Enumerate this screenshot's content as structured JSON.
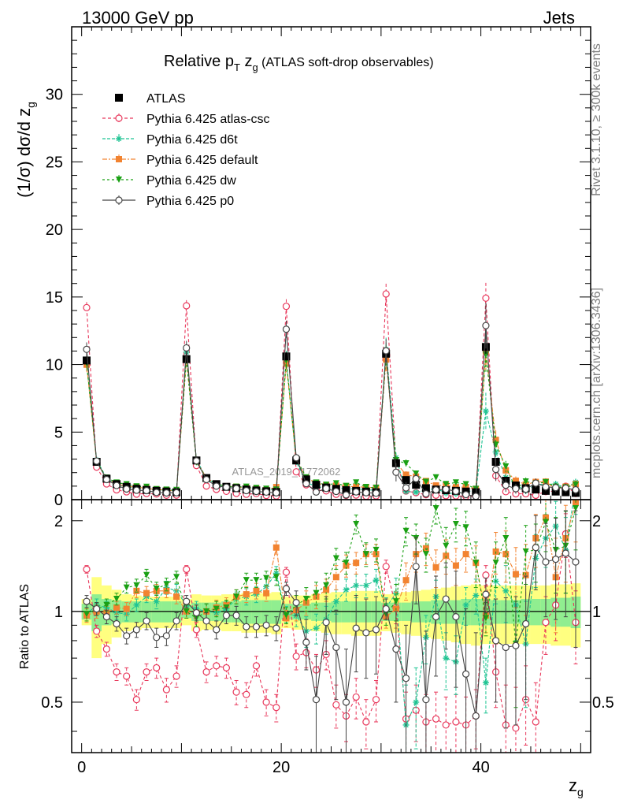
{
  "header": {
    "left": "13000 GeV pp",
    "right": "Jets"
  },
  "title": {
    "main": "Relative p",
    "sub_T": "T",
    "main2": " z",
    "sub_g": "g",
    "paren": " (ATLAS soft-drop observables)"
  },
  "side_labels": {
    "rivet": "Rivet 3.1.10, ≥ 300k events",
    "mcplots": "mcplots.cern.ch [arXiv:1306.3436]",
    "watermark": "ATLAS_2019_I1772062"
  },
  "axes": {
    "ylabel_top": "(1/σ) dσ/d z",
    "ylabel_top_sub": "g",
    "ylabel_bottom": "Ratio to ATLAS",
    "xlabel": "z",
    "xlabel_sub": "g",
    "top_yticks": [
      "0",
      "5",
      "10",
      "15",
      "20",
      "25",
      "30"
    ],
    "bottom_yticks": [
      "0.5",
      "1",
      "2"
    ],
    "xticks": [
      "0",
      "20",
      "40"
    ]
  },
  "colors": {
    "atlas": "#000000",
    "atlas_csc": "#e8365a",
    "d6t": "#1fc493",
    "default": "#f28330",
    "dw": "#1aa014",
    "p0": "#444444",
    "band_inner": "#90ee90",
    "band_outer": "#ffff80"
  },
  "chart_data": {
    "type": "line",
    "xlim": [
      -1,
      51
    ],
    "top_ylim": [
      0,
      35
    ],
    "ratio_ylim": [
      0.34,
      2.35
    ],
    "ratio_scale": "log",
    "bin_width": 1,
    "legend_position": "top-left",
    "x": [
      0.5,
      1.5,
      2.5,
      3.5,
      4.5,
      5.5,
      6.5,
      7.5,
      8.5,
      9.5,
      10.5,
      11.5,
      12.5,
      13.5,
      14.5,
      15.5,
      16.5,
      17.5,
      18.5,
      19.5,
      20.5,
      21.5,
      22.5,
      23.5,
      24.5,
      25.5,
      26.5,
      27.5,
      28.5,
      29.5,
      30.5,
      31.5,
      32.5,
      33.5,
      34.5,
      35.5,
      36.5,
      37.5,
      38.5,
      39.5,
      40.5,
      41.5,
      42.5,
      43.5,
      44.5,
      45.5,
      46.5,
      47.5,
      48.5,
      49.5
    ],
    "series": [
      {
        "name": "ATLAS",
        "key": "atlas",
        "values": [
          10.3,
          2.8,
          1.55,
          1.15,
          0.95,
          0.8,
          0.72,
          0.65,
          0.6,
          0.55,
          10.4,
          2.9,
          1.6,
          1.15,
          0.95,
          0.85,
          0.75,
          0.68,
          0.62,
          0.57,
          10.6,
          2.9,
          1.5,
          1.1,
          0.9,
          0.8,
          0.7,
          0.65,
          0.6,
          0.55,
          10.8,
          2.7,
          1.45,
          1.1,
          0.85,
          0.75,
          0.7,
          0.65,
          0.6,
          0.55,
          11.3,
          2.8,
          1.4,
          1.05,
          0.85,
          0.75,
          0.65,
          0.6,
          0.55,
          0.5
        ],
        "errors": [
          0.3,
          0.15,
          0.1,
          0.08,
          0.07,
          0.06,
          0.06,
          0.05,
          0.05,
          0.05,
          0.3,
          0.15,
          0.1,
          0.08,
          0.07,
          0.06,
          0.06,
          0.05,
          0.05,
          0.05,
          0.3,
          0.15,
          0.1,
          0.08,
          0.07,
          0.06,
          0.06,
          0.05,
          0.05,
          0.05,
          0.4,
          0.2,
          0.12,
          0.1,
          0.08,
          0.07,
          0.07,
          0.06,
          0.06,
          0.06,
          0.5,
          0.25,
          0.15,
          0.12,
          0.1,
          0.09,
          0.08,
          0.08,
          0.07,
          0.07
        ],
        "band_inner": [
          0.06,
          0.14,
          0.1,
          0.09,
          0.08,
          0.08,
          0.08,
          0.08,
          0.08,
          0.08,
          0.05,
          0.07,
          0.07,
          0.07,
          0.08,
          0.08,
          0.09,
          0.09,
          0.09,
          0.09,
          0.06,
          0.06,
          0.06,
          0.07,
          0.07,
          0.08,
          0.08,
          0.08,
          0.08,
          0.08,
          0.07,
          0.07,
          0.07,
          0.08,
          0.08,
          0.09,
          0.09,
          0.09,
          0.1,
          0.1,
          0.1,
          0.09,
          0.09,
          0.09,
          0.1,
          0.1,
          0.1,
          0.11,
          0.11,
          0.12
        ],
        "band_outer": [
          0.1,
          0.3,
          0.22,
          0.18,
          0.14,
          0.13,
          0.12,
          0.12,
          0.12,
          0.12,
          0.1,
          0.14,
          0.13,
          0.13,
          0.14,
          0.14,
          0.15,
          0.15,
          0.15,
          0.16,
          0.12,
          0.13,
          0.13,
          0.14,
          0.15,
          0.16,
          0.16,
          0.17,
          0.17,
          0.17,
          0.14,
          0.15,
          0.16,
          0.17,
          0.18,
          0.19,
          0.2,
          0.21,
          0.22,
          0.23,
          0.22,
          0.22,
          0.22,
          0.22,
          0.22,
          0.22,
          0.22,
          0.23,
          0.23,
          0.24
        ]
      },
      {
        "name": "Pythia 6.425 atlas-csc",
        "key": "atlas_csc",
        "marker": "open-circle",
        "dash": "4,3",
        "ratio": [
          1.38,
          0.86,
          0.75,
          0.63,
          0.61,
          0.51,
          0.63,
          0.65,
          0.55,
          0.61,
          1.38,
          0.87,
          0.63,
          0.66,
          0.65,
          0.54,
          0.53,
          0.66,
          0.5,
          0.48,
          1.35,
          0.71,
          0.73,
          0.64,
          0.72,
          0.49,
          0.45,
          0.52,
          0.43,
          0.51,
          1.41,
          1.03,
          0.44,
          0.47,
          0.43,
          0.44,
          0.42,
          0.43,
          0.42,
          0.45,
          1.32,
          0.63,
          0.42,
          0.41,
          0.51,
          0.43,
          0.92,
          1.05,
          1.81,
          0.92
        ],
        "ratio_err": [
          0.04,
          0.04,
          0.04,
          0.04,
          0.04,
          0.04,
          0.04,
          0.05,
          0.05,
          0.05,
          0.04,
          0.05,
          0.05,
          0.05,
          0.05,
          0.05,
          0.05,
          0.05,
          0.05,
          0.05,
          0.05,
          0.07,
          0.08,
          0.08,
          0.08,
          0.08,
          0.08,
          0.08,
          0.08,
          0.08,
          0.07,
          0.12,
          0.1,
          0.1,
          0.1,
          0.1,
          0.1,
          0.1,
          0.1,
          0.1,
          0.1,
          0.15,
          0.15,
          0.15,
          0.15,
          0.15,
          0.2,
          0.25,
          0.3,
          0.25
        ]
      },
      {
        "name": "Pythia 6.425 d6t",
        "key": "d6t",
        "marker": "star",
        "dash": "4,2",
        "ratio": [
          0.98,
          1.05,
          1.03,
          0.99,
          0.98,
          1.05,
          1.12,
          1.08,
          1.2,
          1.17,
          1.05,
          1.02,
          1.0,
          0.99,
          1.02,
          1.1,
          1.12,
          1.14,
          1.21,
          1.34,
          0.98,
          0.97,
          0.86,
          0.88,
          0.94,
          1.08,
          1.18,
          1.22,
          1.22,
          1.27,
          1.03,
          1.15,
          0.42,
          0.5,
          0.82,
          1.12,
          0.7,
          0.68,
          1.05,
          1.13,
          0.58,
          1.26,
          1.17,
          1.05,
          0.78,
          1.5,
          1.75,
          1.92,
          1.6,
          2.6
        ],
        "ratio_err": [
          0.05,
          0.05,
          0.05,
          0.05,
          0.05,
          0.05,
          0.05,
          0.06,
          0.06,
          0.06,
          0.05,
          0.06,
          0.06,
          0.06,
          0.06,
          0.06,
          0.07,
          0.07,
          0.07,
          0.07,
          0.06,
          0.08,
          0.1,
          0.1,
          0.1,
          0.1,
          0.1,
          0.11,
          0.11,
          0.11,
          0.08,
          0.14,
          0.15,
          0.15,
          0.15,
          0.15,
          0.15,
          0.15,
          0.15,
          0.15,
          0.12,
          0.2,
          0.25,
          0.25,
          0.3,
          0.3,
          0.35,
          0.4,
          0.45,
          0.5
        ]
      },
      {
        "name": "Pythia 6.425 default",
        "key": "default",
        "marker": "square",
        "dash": "6,2,2,2",
        "ratio": [
          0.97,
          1.0,
          0.99,
          1.03,
          1.02,
          1.17,
          1.15,
          1.17,
          1.17,
          1.12,
          1.0,
          0.99,
          1.0,
          1.03,
          1.05,
          1.12,
          1.14,
          1.17,
          1.15,
          1.63,
          0.95,
          1.01,
          1.07,
          1.12,
          1.18,
          1.3,
          1.42,
          1.45,
          1.55,
          1.55,
          0.96,
          1.02,
          1.27,
          1.55,
          1.62,
          1.4,
          1.53,
          1.42,
          1.55,
          1.45,
          0.97,
          1.58,
          1.55,
          1.33,
          1.32,
          1.75,
          2.05,
          1.3,
          1.75,
          2.3
        ],
        "ratio_err": [
          0.05,
          0.05,
          0.05,
          0.05,
          0.05,
          0.06,
          0.06,
          0.06,
          0.06,
          0.06,
          0.05,
          0.06,
          0.06,
          0.06,
          0.06,
          0.06,
          0.07,
          0.07,
          0.07,
          0.08,
          0.06,
          0.08,
          0.1,
          0.1,
          0.1,
          0.12,
          0.12,
          0.12,
          0.12,
          0.12,
          0.08,
          0.14,
          0.18,
          0.2,
          0.2,
          0.2,
          0.2,
          0.2,
          0.2,
          0.2,
          0.12,
          0.25,
          0.3,
          0.3,
          0.35,
          0.35,
          0.4,
          0.45,
          0.5,
          0.6
        ]
      },
      {
        "name": "Pythia 6.425 dw",
        "key": "dw",
        "marker": "triangle-down",
        "dash": "3,3",
        "ratio": [
          0.98,
          1.02,
          1.05,
          1.1,
          1.2,
          1.22,
          1.32,
          1.19,
          1.23,
          1.3,
          1.0,
          0.95,
          1.0,
          1.02,
          1.03,
          1.12,
          1.27,
          1.27,
          1.29,
          1.3,
          0.97,
          1.05,
          1.1,
          1.15,
          1.22,
          1.5,
          1.45,
          1.95,
          1.55,
          1.6,
          0.98,
          1.08,
          1.85,
          1.75,
          1.55,
          2.2,
          1.65,
          1.95,
          1.9,
          1.45,
          0.95,
          1.45,
          1.75,
          0.78,
          1.58,
          1.6,
          1.98,
          1.6,
          1.65,
          2.2
        ],
        "ratio_err": [
          0.05,
          0.05,
          0.05,
          0.05,
          0.05,
          0.06,
          0.06,
          0.06,
          0.06,
          0.06,
          0.05,
          0.06,
          0.06,
          0.06,
          0.06,
          0.06,
          0.07,
          0.07,
          0.07,
          0.08,
          0.06,
          0.08,
          0.1,
          0.1,
          0.12,
          0.12,
          0.12,
          0.14,
          0.14,
          0.14,
          0.08,
          0.15,
          0.2,
          0.2,
          0.2,
          0.25,
          0.25,
          0.25,
          0.25,
          0.25,
          0.12,
          0.25,
          0.3,
          0.3,
          0.35,
          0.35,
          0.4,
          0.45,
          0.5,
          0.6
        ]
      },
      {
        "name": "Pythia 6.425 p0",
        "key": "p0",
        "marker": "open-circle",
        "dash": "",
        "ratio": [
          1.08,
          1.02,
          0.96,
          0.91,
          0.83,
          0.87,
          0.93,
          0.82,
          0.83,
          0.93,
          1.08,
          0.99,
          0.93,
          0.87,
          0.97,
          0.97,
          0.89,
          0.89,
          0.9,
          0.88,
          1.19,
          1.07,
          0.79,
          0.51,
          0.92,
          0.76,
          0.5,
          0.88,
          0.85,
          0.87,
          1.02,
          0.75,
          0.6,
          1.41,
          0.51,
          0.96,
          1.1,
          0.96,
          0.62,
          0.45,
          1.14,
          0.8,
          0.76,
          0.77,
          0.91,
          1.63,
          1.46,
          1.49,
          1.56,
          1.46
        ],
        "ratio_err": [
          0.05,
          0.05,
          0.05,
          0.05,
          0.05,
          0.05,
          0.06,
          0.06,
          0.06,
          0.06,
          0.05,
          0.06,
          0.06,
          0.06,
          0.06,
          0.07,
          0.07,
          0.07,
          0.07,
          0.08,
          0.06,
          0.1,
          0.15,
          0.2,
          0.2,
          0.25,
          0.25,
          0.25,
          0.25,
          0.25,
          0.08,
          0.25,
          0.3,
          0.35,
          0.35,
          0.35,
          0.35,
          0.4,
          0.4,
          0.4,
          0.15,
          0.3,
          0.35,
          0.35,
          0.4,
          0.45,
          0.5,
          0.55,
          0.6,
          0.7
        ]
      }
    ]
  }
}
